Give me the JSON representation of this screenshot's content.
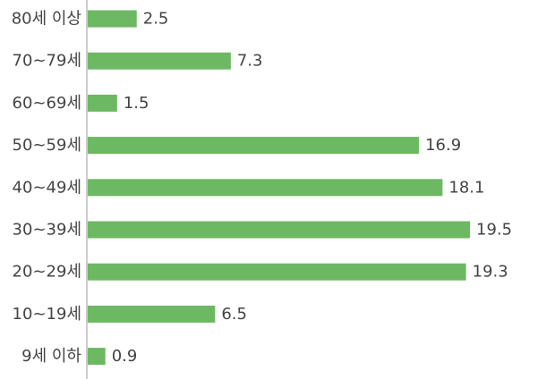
{
  "chart_data": {
    "type": "bar",
    "orientation": "horizontal",
    "categories": [
      "80세 이상",
      "70~79세",
      "60~69세",
      "50~59세",
      "40~49세",
      "30~39세",
      "20~29세",
      "10~19세",
      "9세 이하"
    ],
    "values": [
      2.5,
      7.3,
      1.5,
      16.9,
      18.1,
      19.5,
      19.3,
      6.5,
      0.9
    ],
    "value_labels": [
      "2.5",
      "7.3",
      "1.5",
      "16.9",
      "18.1",
      "19.5",
      "19.3",
      "6.5",
      "0.9"
    ],
    "title": "",
    "xlabel": "",
    "ylabel": "",
    "xlim": [
      0,
      20
    ],
    "grid": false,
    "legend": "none",
    "bar_color": "#6db862",
    "axis_color": "#bbbbbb",
    "text_color": "#444444"
  }
}
